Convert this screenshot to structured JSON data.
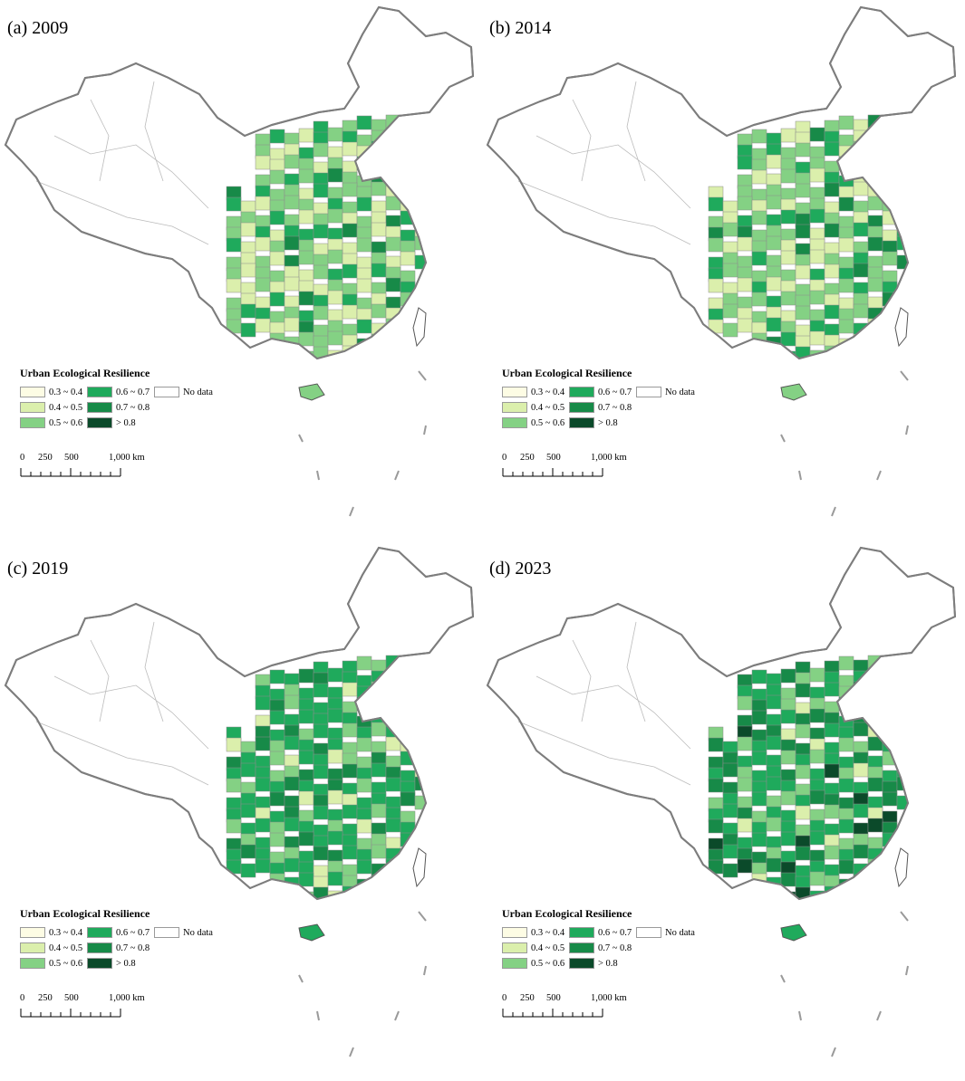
{
  "panels": [
    {
      "title": "(a) 2009",
      "legend_title": "Urban Ecological Resilience"
    },
    {
      "title": "(b) 2014",
      "legend_title": "Urban Ecological Resilience"
    },
    {
      "title": "(c) 2019",
      "legend_title": "Urban Ecological Resilience"
    },
    {
      "title": "(d) 2023",
      "legend_title": "Urban Ecological Resilience"
    }
  ],
  "legend": {
    "classes": [
      {
        "label": "0.3 ~ 0.4",
        "color": "#fdfce4"
      },
      {
        "label": "0.6 ~ 0.7",
        "color": "#1faa5c"
      },
      {
        "label": "No data",
        "color": "#ffffff"
      },
      {
        "label": "0.4 ~ 0.5",
        "color": "#dbefac"
      },
      {
        "label": "0.7 ~ 0.8",
        "color": "#178a48"
      },
      {
        "label": "",
        "color": ""
      },
      {
        "label": "0.5 ~ 0.6",
        "color": "#84d184"
      },
      {
        "label": "> 0.8",
        "color": "#0b4a2a"
      },
      {
        "label": "",
        "color": ""
      }
    ]
  },
  "scale_bar": {
    "ticks": [
      "0",
      "250",
      "500",
      "1,000 km"
    ]
  },
  "colors": {
    "boundary": "#8c8c8c",
    "outline": "#7d7d7d",
    "no_data": "#ffffff"
  }
}
